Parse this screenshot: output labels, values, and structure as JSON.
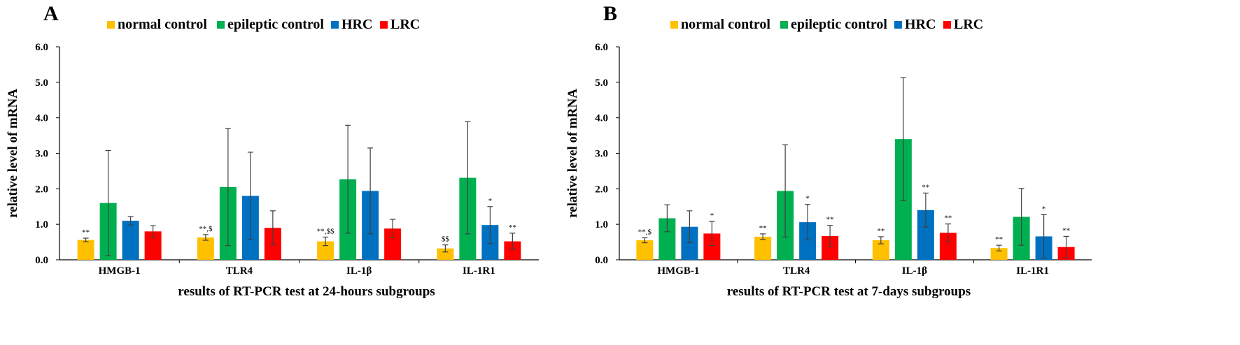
{
  "chart_data": [
    {
      "type": "bar",
      "panel": "A",
      "xlabel": "results of RT-PCR test at 24-hours subgroups",
      "ylabel": "relative level of mRNA",
      "ylim": [
        0,
        6
      ],
      "yticks": [
        "0.0",
        "1.0",
        "2.0",
        "3.0",
        "4.0",
        "5.0",
        "6.0"
      ],
      "categories": [
        "HMGB-1",
        "TLR4",
        "IL-1β",
        "IL-1R1"
      ],
      "series": [
        {
          "name": "normal control",
          "color": "#FFC000",
          "values": [
            0.56,
            0.63,
            0.52,
            0.32
          ],
          "errors": [
            0.05,
            0.08,
            0.12,
            0.1
          ],
          "labels": [
            "**",
            "**,$",
            "**,$$",
            "$$"
          ]
        },
        {
          "name": "epileptic control",
          "color": "#00B050",
          "values": [
            1.6,
            2.05,
            2.27,
            2.31
          ],
          "errors": [
            1.48,
            1.65,
            1.52,
            1.58
          ],
          "labels": [
            "",
            "",
            "",
            ""
          ]
        },
        {
          "name": "HRC",
          "color": "#0070C0",
          "values": [
            1.1,
            1.8,
            1.94,
            0.98
          ],
          "errors": [
            0.12,
            1.23,
            1.21,
            0.52
          ],
          "labels": [
            "",
            "",
            "",
            "*"
          ]
        },
        {
          "name": "LRC",
          "color": "#FF0000",
          "values": [
            0.8,
            0.9,
            0.88,
            0.52
          ],
          "errors": [
            0.16,
            0.48,
            0.26,
            0.23
          ],
          "labels": [
            "",
            "",
            "",
            "**"
          ]
        }
      ]
    },
    {
      "type": "bar",
      "panel": "B",
      "xlabel": "results of RT-PCR test at 7-days subgroups",
      "ylabel": "relative level of mRNA",
      "ylim": [
        0,
        6
      ],
      "yticks": [
        "0.0",
        "1.0",
        "2.0",
        "3.0",
        "4.0",
        "5.0",
        "6.0"
      ],
      "categories": [
        "HMGB-1",
        "TLR4",
        "IL-1β",
        "IL-1R1"
      ],
      "series": [
        {
          "name": "normal control",
          "color": "#FFC000",
          "values": [
            0.55,
            0.65,
            0.55,
            0.33
          ],
          "errors": [
            0.07,
            0.08,
            0.1,
            0.08
          ],
          "labels": [
            "**,$",
            "**",
            "**",
            "**"
          ]
        },
        {
          "name": "epileptic control",
          "color": "#00B050",
          "values": [
            1.17,
            1.94,
            3.4,
            1.21
          ],
          "errors": [
            0.38,
            1.3,
            1.73,
            0.8
          ],
          "labels": [
            "",
            "",
            "",
            ""
          ]
        },
        {
          "name": "HRC",
          "color": "#0070C0",
          "values": [
            0.93,
            1.06,
            1.4,
            0.66
          ],
          "errors": [
            0.45,
            0.5,
            0.48,
            0.61
          ],
          "labels": [
            "",
            "*",
            "**",
            "*"
          ]
        },
        {
          "name": "LRC",
          "color": "#FF0000",
          "values": [
            0.74,
            0.67,
            0.76,
            0.36
          ],
          "errors": [
            0.34,
            0.3,
            0.25,
            0.3
          ],
          "labels": [
            "*",
            "**",
            "**",
            "**"
          ]
        }
      ]
    }
  ]
}
